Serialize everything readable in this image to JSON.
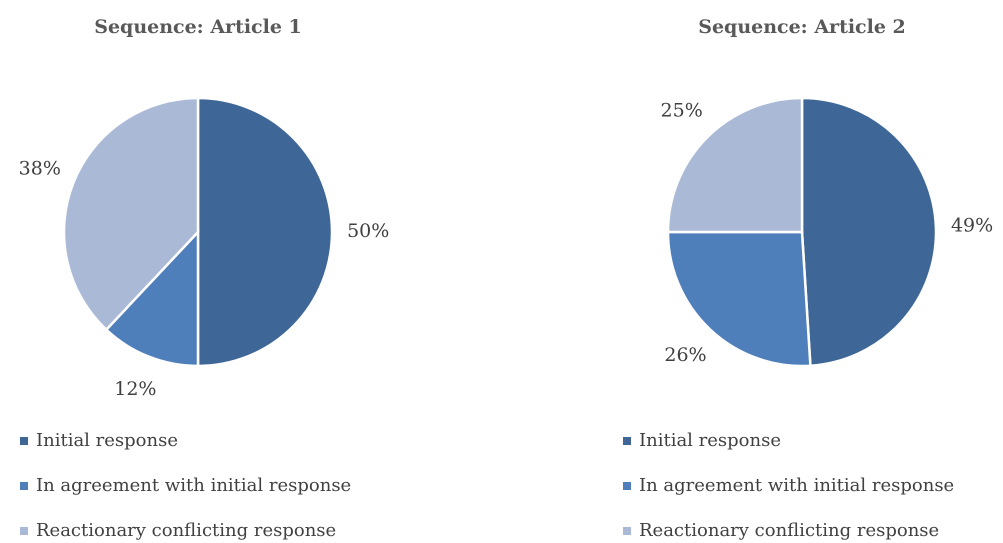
{
  "chart_data": [
    {
      "type": "pie",
      "title": "Sequence: Article 1",
      "categories": [
        "Initial response",
        "In agreement with initial response",
        "Reactionary conflicting response"
      ],
      "values": [
        50,
        12,
        38
      ],
      "value_labels": [
        "50%",
        "12%",
        "38%"
      ],
      "colors": [
        "#3e6798",
        "#4e7fbb",
        "#a9b9d6"
      ]
    },
    {
      "type": "pie",
      "title": "Sequence: Article 2",
      "categories": [
        "Initial response",
        "In agreement with initial response",
        "Reactionary conflicting response"
      ],
      "values": [
        49,
        26,
        25
      ],
      "value_labels": [
        "49%",
        "26%",
        "25%"
      ],
      "colors": [
        "#3e6798",
        "#4e7fbb",
        "#a9b9d6"
      ]
    }
  ]
}
